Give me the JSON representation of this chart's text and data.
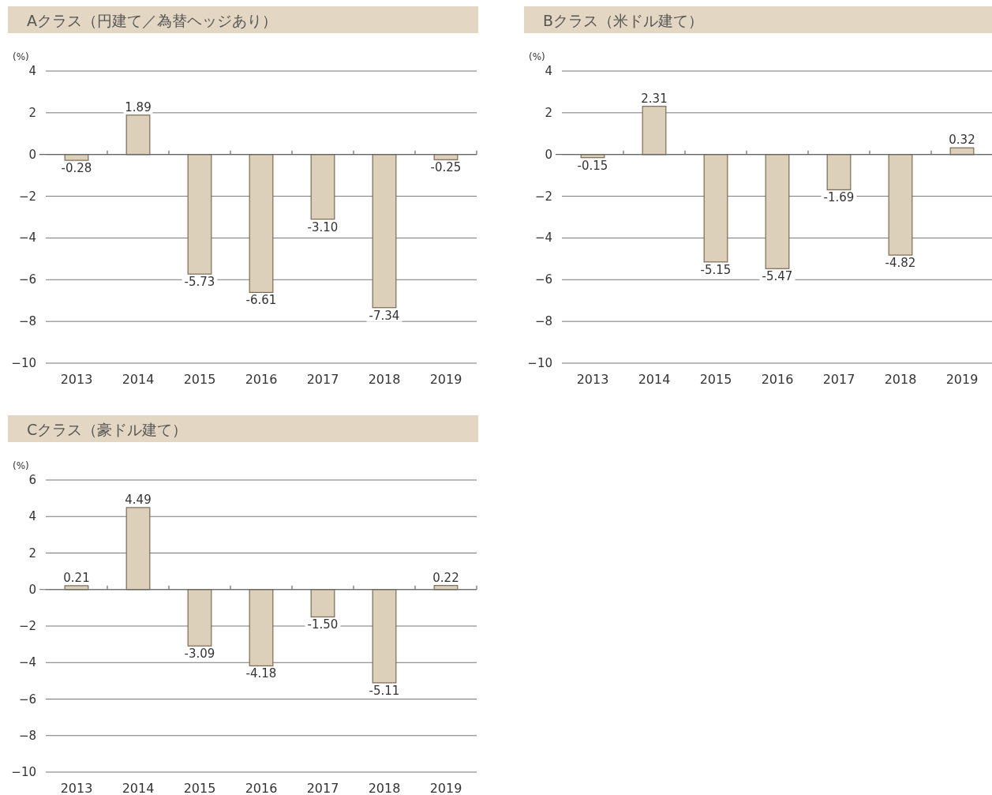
{
  "chart_data": [
    {
      "type": "bar",
      "title": "Aクラス（円建て／為替ヘッジあり）",
      "ylabel": "(%)",
      "categories": [
        "2013",
        "2014",
        "2015",
        "2016",
        "2017",
        "2018",
        "2019"
      ],
      "values": [
        -0.28,
        1.89,
        -5.73,
        -6.61,
        -3.1,
        -7.34,
        -0.25
      ],
      "value_labels": [
        "-0.28",
        "1.89",
        "-5.73",
        "-6.61",
        "-3.10",
        "-7.34",
        "-0.25"
      ],
      "color": "#ddd0bb",
      "ylim": [
        -10,
        4
      ],
      "yticks": [
        -10,
        -8,
        -6,
        -4,
        -2,
        0,
        2,
        4
      ],
      "grid": "y"
    },
    {
      "type": "bar",
      "title": "Bクラス（米ドル建て）",
      "ylabel": "(%)",
      "categories": [
        "2013",
        "2014",
        "2015",
        "2016",
        "2017",
        "2018",
        "2019"
      ],
      "values": [
        -0.15,
        2.31,
        -5.15,
        -5.47,
        -1.69,
        -4.82,
        0.32
      ],
      "value_labels": [
        "-0.15",
        "2.31",
        "-5.15",
        "-5.47",
        "-1.69",
        "-4.82",
        "0.32"
      ],
      "color": "#ddd0bb",
      "ylim": [
        -10,
        4
      ],
      "yticks": [
        -10,
        -8,
        -6,
        -4,
        -2,
        0,
        2,
        4
      ],
      "grid": "y"
    },
    {
      "type": "bar",
      "title": "Cクラス（豪ドル建て）",
      "ylabel": "(%)",
      "categories": [
        "2013",
        "2014",
        "2015",
        "2016",
        "2017",
        "2018",
        "2019"
      ],
      "values": [
        0.21,
        4.49,
        -3.09,
        -4.18,
        -1.5,
        -5.11,
        0.22
      ],
      "value_labels": [
        "0.21",
        "4.49",
        "-3.09",
        "-4.18",
        "-1.50",
        "-5.11",
        "0.22"
      ],
      "color": "#ddd0bb",
      "ylim": [
        -10,
        6
      ],
      "yticks": [
        -10,
        -8,
        -6,
        -4,
        -2,
        0,
        2,
        4,
        6
      ],
      "grid": "y"
    }
  ]
}
